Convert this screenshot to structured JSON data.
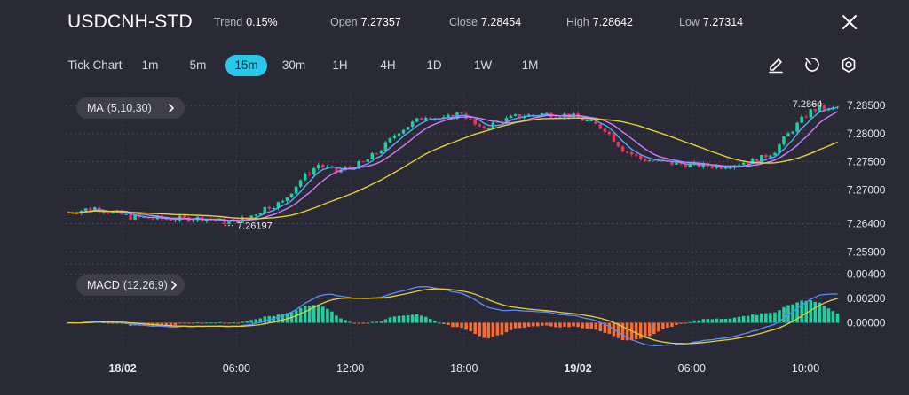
{
  "header": {
    "symbol": "USDCNH-STD",
    "stats": [
      {
        "label": "Trend",
        "value": "0.15%"
      },
      {
        "label": "Open",
        "value": "7.27357"
      },
      {
        "label": "Close",
        "value": "7.28454"
      },
      {
        "label": "High",
        "value": "7.28642"
      },
      {
        "label": "Low",
        "value": "7.27314"
      }
    ],
    "close_icon": "close-icon"
  },
  "timeframes": [
    "Tick Chart",
    "1m",
    "5m",
    "15m",
    "30m",
    "1H",
    "4H",
    "1D",
    "1W",
    "1M"
  ],
  "active_timeframe": "15m",
  "tools": [
    "draw-pen-icon",
    "timer-icon",
    "settings-gear-icon"
  ],
  "indicators": {
    "ma": {
      "name": "MA",
      "params": "(5,10,30)"
    },
    "macd": {
      "name": "MACD",
      "params": "(12,26,9)"
    }
  },
  "colors": {
    "background": "#2a2a36",
    "up": "#1fd1a2",
    "down": "#e8345a",
    "ma5": "#5aa9ff",
    "ma10": "#d27bff",
    "ma30": "#e3cf3a",
    "macd_line": "#5a8dff",
    "signal_line": "#e3cf3a",
    "hist_up": "#1fd1a2",
    "hist_down": "#ff6a2f",
    "accent": "#29c7ea"
  },
  "chart_data": {
    "type": "candlestick",
    "price_axis": {
      "ticks": [
        "7.28500",
        "7.28000",
        "7.27500",
        "7.27000",
        "7.26400",
        "7.25900"
      ],
      "ylim": [
        7.2578,
        7.288
      ]
    },
    "macd_axis": {
      "ticks": [
        "0.00400",
        "0.00200",
        "0.00000"
      ],
      "ylim": [
        -0.002,
        0.0044
      ]
    },
    "x_ticks": [
      "18/02",
      "06:00",
      "12:00",
      "18:00",
      "19/02",
      "06:00",
      "10:00"
    ],
    "annotations": {
      "low_label": "7.26197",
      "high_label": "7.2864"
    },
    "close_path": [
      [
        0,
        7.266
      ],
      [
        6,
        7.2668
      ],
      [
        14,
        7.2652
      ],
      [
        22,
        7.2648
      ],
      [
        30,
        7.265
      ],
      [
        36,
        7.2642
      ],
      [
        40,
        7.265
      ],
      [
        44,
        7.2668
      ],
      [
        48,
        7.2678
      ],
      [
        52,
        7.2718
      ],
      [
        56,
        7.2745
      ],
      [
        60,
        7.2732
      ],
      [
        66,
        7.2748
      ],
      [
        70,
        7.2772
      ],
      [
        74,
        7.2805
      ],
      [
        80,
        7.2832
      ],
      [
        84,
        7.2825
      ],
      [
        88,
        7.2838
      ],
      [
        92,
        7.2808
      ],
      [
        96,
        7.282
      ],
      [
        100,
        7.283
      ],
      [
        106,
        7.2835
      ],
      [
        112,
        7.2833
      ],
      [
        116,
        7.2822
      ],
      [
        120,
        7.2808
      ],
      [
        124,
        7.2772
      ],
      [
        128,
        7.2755
      ],
      [
        134,
        7.2748
      ],
      [
        140,
        7.2744
      ],
      [
        146,
        7.2742
      ],
      [
        150,
        7.2748
      ],
      [
        154,
        7.2752
      ],
      [
        158,
        7.277
      ],
      [
        160,
        7.279
      ],
      [
        164,
        7.2825
      ],
      [
        166,
        7.284
      ],
      [
        168,
        7.2845
      ],
      [
        170,
        7.2842
      ],
      [
        172,
        7.2847
      ]
    ],
    "candle_count": 173,
    "ma_periods": [
      5,
      10,
      30
    ],
    "macd_params": [
      12,
      26,
      9
    ]
  }
}
